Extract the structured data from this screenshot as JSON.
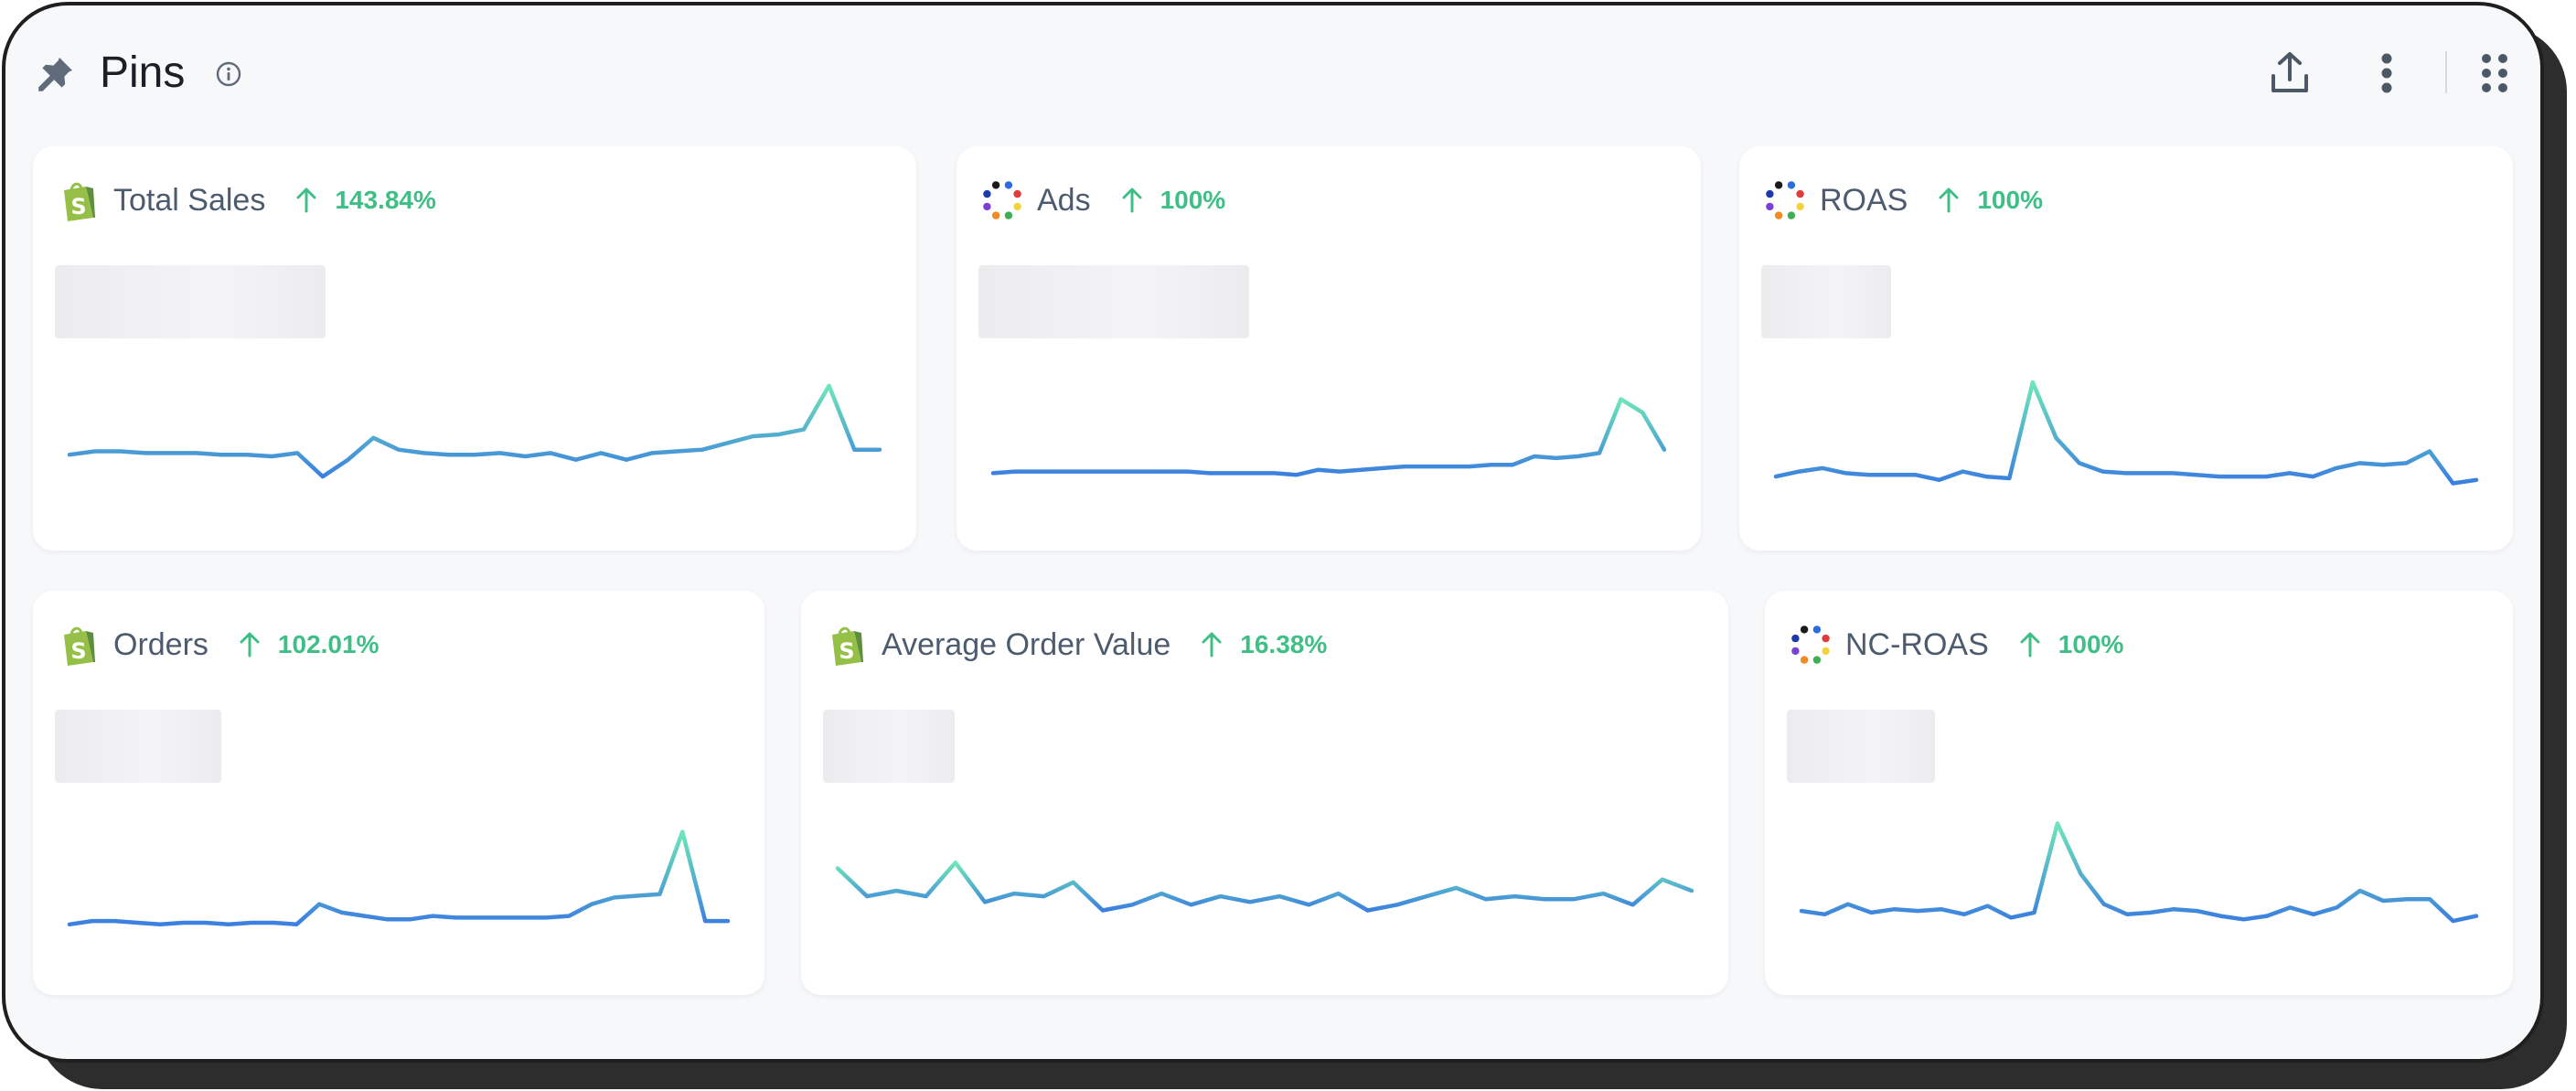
{
  "panel": {
    "title": "Pins"
  },
  "header_icons": [
    "pin-icon",
    "info-icon",
    "export-icon",
    "more-vertical-icon",
    "grid-icon"
  ],
  "colors": {
    "accent_up": "#3fbf86",
    "line_start": "#3b7fe0",
    "line_end": "#6ee6b8",
    "shopify": "#95bf47"
  },
  "cards": [
    {
      "id": "total-sales",
      "title": "Total Sales",
      "delta": "143.84%",
      "source_icon": "shopify-icon",
      "chart_data": {
        "type": "line",
        "values": [
          45,
          47,
          47,
          46,
          46,
          46,
          45,
          45,
          44,
          46,
          32,
          42,
          55,
          48,
          46,
          45,
          45,
          46,
          44,
          46,
          42,
          46,
          42,
          46,
          47,
          48,
          52,
          56,
          57,
          60,
          86,
          48,
          48
        ],
        "ylim": [
          0,
          100
        ]
      }
    },
    {
      "id": "ads",
      "title": "Ads",
      "delta": "100%",
      "source_icon": "multi-dot-icon",
      "chart_data": {
        "type": "line",
        "values": [
          34,
          35,
          35,
          35,
          35,
          35,
          35,
          35,
          35,
          35,
          34,
          34,
          34,
          34,
          33,
          36,
          35,
          36,
          37,
          38,
          38,
          38,
          38,
          39,
          39,
          44,
          43,
          44,
          46,
          78,
          70,
          48
        ],
        "ylim": [
          0,
          100
        ]
      }
    },
    {
      "id": "roas",
      "title": "ROAS",
      "delta": "100%",
      "source_icon": "multi-dot-icon",
      "chart_data": {
        "type": "line",
        "values": [
          32,
          35,
          37,
          34,
          33,
          33,
          33,
          30,
          35,
          32,
          31,
          88,
          55,
          40,
          35,
          34,
          34,
          34,
          33,
          32,
          32,
          32,
          34,
          32,
          37,
          40,
          39,
          40,
          47,
          28,
          30
        ],
        "ylim": [
          0,
          100
        ]
      }
    },
    {
      "id": "orders",
      "title": "Orders",
      "delta": "102.01%",
      "source_icon": "shopify-icon",
      "chart_data": {
        "type": "line",
        "values": [
          30,
          32,
          32,
          31,
          30,
          31,
          31,
          30,
          31,
          31,
          30,
          42,
          37,
          35,
          33,
          33,
          35,
          34,
          34,
          34,
          34,
          34,
          35,
          42,
          46,
          47,
          48,
          85,
          32,
          32
        ],
        "ylim": [
          0,
          100
        ]
      }
    },
    {
      "id": "aov",
      "title": "Average Order Value",
      "delta": "16.38%",
      "source_icon": "shopify-icon",
      "chart_data": {
        "type": "line",
        "values": [
          68,
          58,
          60,
          58,
          70,
          56,
          59,
          58,
          63,
          53,
          55,
          59,
          55,
          58,
          56,
          58,
          55,
          59,
          53,
          55,
          58,
          61,
          57,
          58,
          57,
          57,
          59,
          55,
          64,
          60
        ],
        "ylim": [
          30,
          90
        ]
      }
    },
    {
      "id": "nc-roas",
      "title": "NC-ROAS",
      "delta": "100%",
      "source_icon": "multi-dot-icon",
      "chart_data": {
        "type": "line",
        "values": [
          38,
          36,
          42,
          37,
          39,
          38,
          39,
          36,
          41,
          34,
          37,
          90,
          60,
          42,
          36,
          37,
          39,
          38,
          35,
          33,
          35,
          40,
          36,
          40,
          50,
          44,
          45,
          45,
          32,
          35
        ],
        "ylim": [
          0,
          100
        ]
      }
    }
  ]
}
